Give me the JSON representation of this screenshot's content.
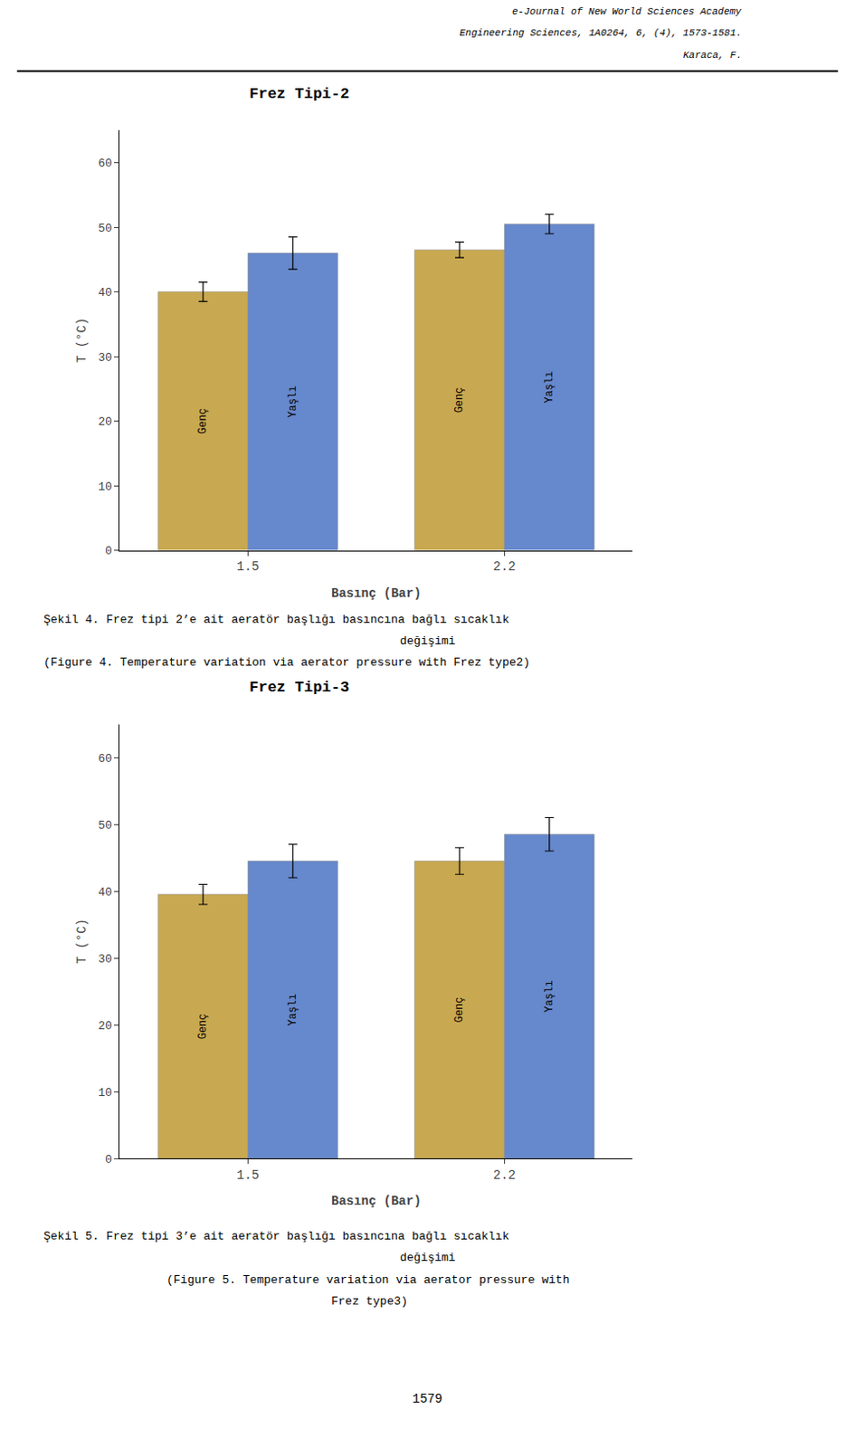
{
  "chart_data": [
    {
      "type": "bar",
      "title": "Frez Tipi-2",
      "categories": [
        "1.5",
        "2.2"
      ],
      "series": [
        {
          "name": "Genç",
          "color": "#C8A850",
          "values": [
            40.0,
            46.5
          ],
          "errors": [
            1.5,
            1.2
          ]
        },
        {
          "name": "Yaşlı",
          "color": "#6688CC",
          "values": [
            46.0,
            50.5
          ],
          "errors": [
            2.5,
            1.5
          ]
        }
      ],
      "xlabel": "Basınç (Bar)",
      "ylabel": "T (°C)",
      "ylim": [
        0,
        65
      ],
      "yticks": [
        0,
        10,
        20,
        30,
        40,
        50,
        60
      ],
      "grid": false,
      "annotations": [
        [
          "e-Journal of New World Sciences Academy",
          "Engineering Sciences, 1A0264, 6, (4), 1573-1581.",
          "Karaca, F."
        ],
        [
          "Şekil 4. Frez tipi 2’e ait aeratör başlığı basıncına bağlı sıcaklık",
          "değişimi",
          "(Figure 4. Temperature variation via aerator pressure with Frez type2)"
        ]
      ]
    },
    {
      "type": "bar",
      "title": "Frez Tipi-3",
      "categories": [
        "1.5",
        "2.2"
      ],
      "series": [
        {
          "name": "Genç",
          "color": "#C8A850",
          "values": [
            39.5,
            44.5
          ],
          "errors": [
            1.5,
            2.0
          ]
        },
        {
          "name": "Yaşlı",
          "color": "#6688CC",
          "values": [
            44.5,
            48.5
          ],
          "errors": [
            2.5,
            2.5
          ]
        }
      ],
      "xlabel": "Basınç (Bar)",
      "ylabel": "T (°C)",
      "ylim": [
        0,
        65
      ],
      "yticks": [
        0,
        10,
        20,
        30,
        40,
        50,
        60
      ],
      "grid": false,
      "annotations": [
        [
          "Şekil 5. Frez tipi 3’e ait aeratör başlığı basıncına bağlı sıcaklık",
          "değişimi",
          "(Figure 5. Temperature variation via aerator pressure with",
          "Frez type3)"
        ],
        [
          "1579"
        ]
      ]
    }
  ]
}
